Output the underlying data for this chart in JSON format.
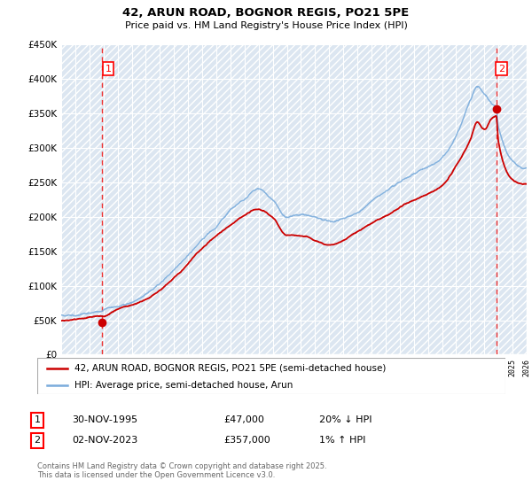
{
  "title": "42, ARUN ROAD, BOGNOR REGIS, PO21 5PE",
  "subtitle": "Price paid vs. HM Land Registry's House Price Index (HPI)",
  "y_ticks": [
    0,
    50000,
    100000,
    150000,
    200000,
    250000,
    300000,
    350000,
    400000,
    450000
  ],
  "y_tick_labels": [
    "£0",
    "£50K",
    "£100K",
    "£150K",
    "£200K",
    "£250K",
    "£300K",
    "£350K",
    "£400K",
    "£450K"
  ],
  "x_start_year": 1993,
  "x_end_year": 2026,
  "sale1_year": 1995.92,
  "sale1_price": 47000,
  "sale2_year": 2023.84,
  "sale2_price": 357000,
  "sale1_label": "1",
  "sale2_label": "2",
  "legend_line1": "42, ARUN ROAD, BOGNOR REGIS, PO21 5PE (semi-detached house)",
  "legend_line2": "HPI: Average price, semi-detached house, Arun",
  "table_row1": [
    "1",
    "30-NOV-1995",
    "£47,000",
    "20% ↓ HPI"
  ],
  "table_row2": [
    "2",
    "02-NOV-2023",
    "£357,000",
    "1% ↑ HPI"
  ],
  "footer": "Contains HM Land Registry data © Crown copyright and database right 2025.\nThis data is licensed under the Open Government Licence v3.0.",
  "house_color": "#cc0000",
  "hpi_color": "#7aacdc",
  "dashed_line_color": "#ee3333",
  "plot_bg_color": "#dce6f1",
  "grid_color": "#ffffff"
}
